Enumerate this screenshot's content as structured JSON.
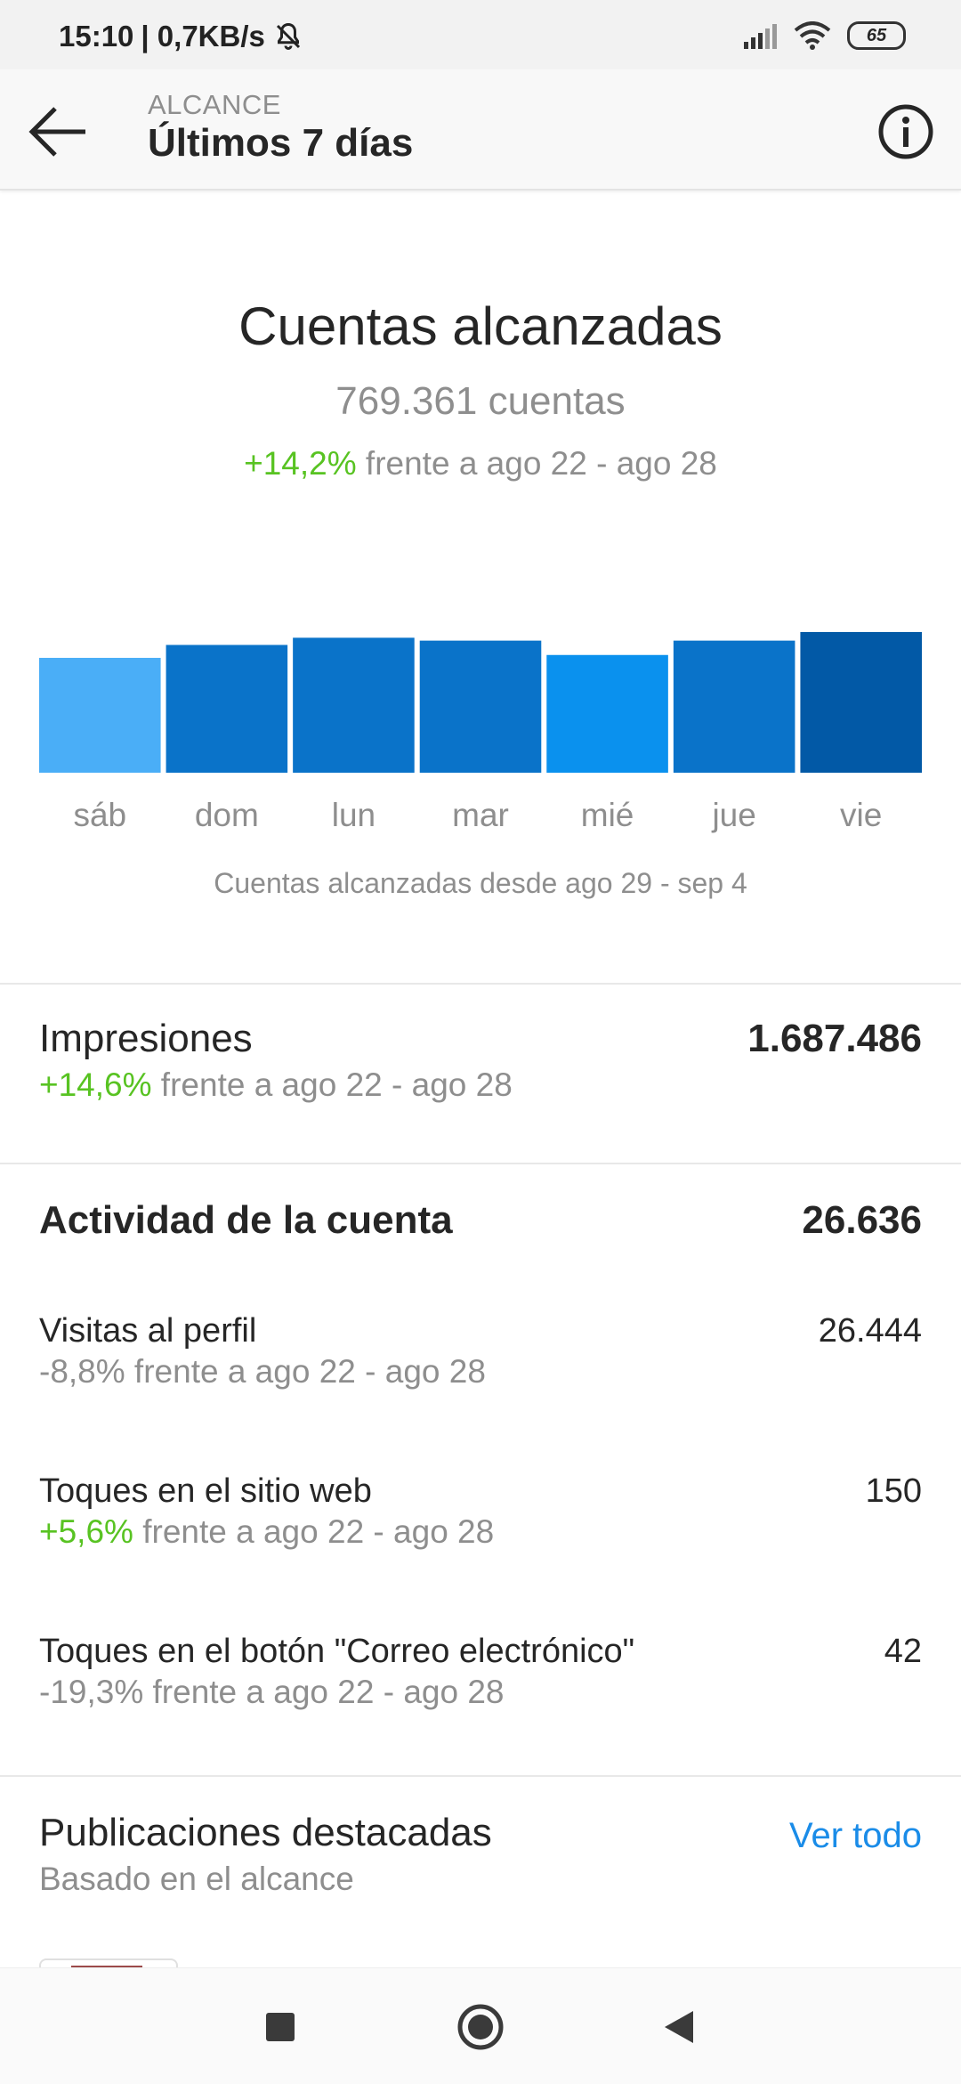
{
  "status_bar": {
    "time": "15:10",
    "speed": "| 0,7KB/s",
    "battery": "65"
  },
  "app_bar": {
    "kicker": "ALCANCE",
    "title": "Últimos 7 días"
  },
  "summary": {
    "title": "Cuentas alcanzadas",
    "count": "769.361 cuentas",
    "change": "+14,2%",
    "comparison": " frente a ago 22 - ago 28"
  },
  "chart_data": {
    "type": "bar",
    "categories": [
      "sáb",
      "dom",
      "lun",
      "mar",
      "mié",
      "jue",
      "vie"
    ],
    "values": [
      0.8,
      0.89,
      0.94,
      0.92,
      0.82,
      0.92,
      0.98
    ],
    "colors": [
      "#4aaef7",
      "#0a73c9",
      "#0a73c9",
      "#0a73c9",
      "#0a91ee",
      "#0a73c9",
      "#0259a6"
    ],
    "caption": "Cuentas alcanzadas desde ago 29 - sep 4",
    "value_scale": "relative bar heights, no axis printed"
  },
  "impressions": {
    "title": "Impresiones",
    "value": "1.687.486",
    "change": "+14,6%",
    "comparison": " frente a ago 22 - ago 28"
  },
  "activity": {
    "title": "Actividad de la cuenta",
    "value": "26.636",
    "items": [
      {
        "title": "Visitas al perfil",
        "value": "26.444",
        "change": "-8,8%",
        "comparison": " frente a ago 22 - ago 28"
      },
      {
        "title": "Toques en el sitio web",
        "value": "150",
        "change": "+5,6%",
        "comparison": " frente a ago 22 - ago 28"
      },
      {
        "title": "Toques en el botón \"Correo electrónico\"",
        "value": "42",
        "change": "-19,3%",
        "comparison": " frente a ago 22 - ago 28"
      }
    ]
  },
  "featured": {
    "title": "Publicaciones destacadas",
    "subtitle": "Basado en el alcance",
    "link": "Ver todo"
  },
  "colors": {
    "positive": "#58c322",
    "link": "#1a8ce8"
  }
}
